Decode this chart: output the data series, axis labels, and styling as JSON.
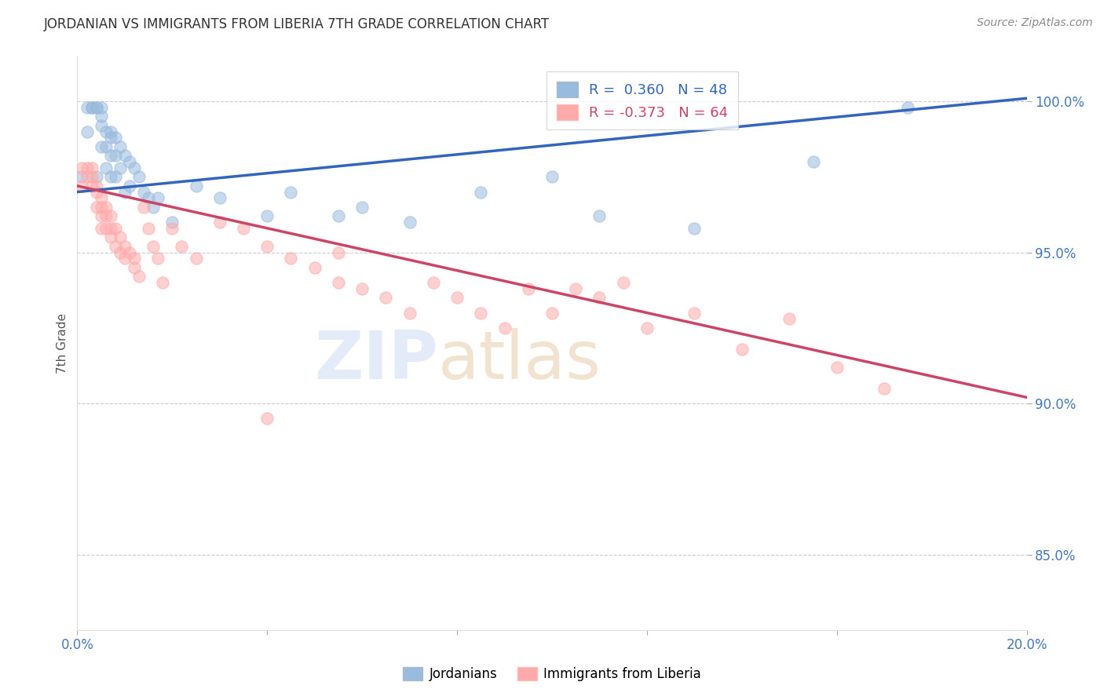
{
  "title": "JORDANIAN VS IMMIGRANTS FROM LIBERIA 7TH GRADE CORRELATION CHART",
  "source": "Source: ZipAtlas.com",
  "ylabel": "7th Grade",
  "xlim": [
    0.0,
    0.2
  ],
  "ylim": [
    0.825,
    1.015
  ],
  "y_ticks": [
    0.85,
    0.9,
    0.95,
    1.0
  ],
  "y_tick_labels": [
    "85.0%",
    "90.0%",
    "95.0%",
    "100.0%"
  ],
  "blue_color": "#99BBDD",
  "pink_color": "#FFAAAA",
  "blue_line_color": "#3366BB",
  "pink_line_color": "#CC4466",
  "legend_blue_label": "R =  0.360   N = 48",
  "legend_pink_label": "R = -0.373   N = 64",
  "watermark1": "ZIP",
  "watermark2": "atlas",
  "legend_label_jordanians": "Jordanians",
  "legend_label_liberia": "Immigrants from Liberia",
  "blue_line_y0": 0.97,
  "blue_line_y1": 1.001,
  "pink_line_y0": 0.972,
  "pink_line_y1": 0.902,
  "blue_x": [
    0.001,
    0.002,
    0.002,
    0.003,
    0.003,
    0.004,
    0.004,
    0.004,
    0.005,
    0.005,
    0.005,
    0.005,
    0.006,
    0.006,
    0.006,
    0.007,
    0.007,
    0.007,
    0.007,
    0.008,
    0.008,
    0.008,
    0.009,
    0.009,
    0.01,
    0.01,
    0.011,
    0.011,
    0.012,
    0.013,
    0.014,
    0.015,
    0.016,
    0.017,
    0.02,
    0.025,
    0.03,
    0.04,
    0.045,
    0.055,
    0.06,
    0.07,
    0.085,
    0.1,
    0.11,
    0.13,
    0.155,
    0.175
  ],
  "blue_y": [
    0.975,
    0.998,
    0.99,
    0.998,
    0.998,
    0.998,
    0.998,
    0.975,
    0.998,
    0.995,
    0.992,
    0.985,
    0.99,
    0.985,
    0.978,
    0.99,
    0.988,
    0.982,
    0.975,
    0.988,
    0.982,
    0.975,
    0.985,
    0.978,
    0.982,
    0.97,
    0.98,
    0.972,
    0.978,
    0.975,
    0.97,
    0.968,
    0.965,
    0.968,
    0.96,
    0.972,
    0.968,
    0.962,
    0.97,
    0.962,
    0.965,
    0.96,
    0.97,
    0.975,
    0.962,
    0.958,
    0.98,
    0.998
  ],
  "pink_x": [
    0.001,
    0.001,
    0.002,
    0.002,
    0.003,
    0.003,
    0.003,
    0.004,
    0.004,
    0.004,
    0.005,
    0.005,
    0.005,
    0.005,
    0.006,
    0.006,
    0.006,
    0.007,
    0.007,
    0.007,
    0.008,
    0.008,
    0.009,
    0.009,
    0.01,
    0.01,
    0.011,
    0.012,
    0.012,
    0.013,
    0.014,
    0.015,
    0.016,
    0.017,
    0.018,
    0.02,
    0.022,
    0.025,
    0.03,
    0.035,
    0.04,
    0.045,
    0.05,
    0.055,
    0.06,
    0.065,
    0.07,
    0.075,
    0.08,
    0.085,
    0.09,
    0.095,
    0.1,
    0.11,
    0.12,
    0.13,
    0.14,
    0.15,
    0.16,
    0.17,
    0.04,
    0.055,
    0.115,
    0.105
  ],
  "pink_y": [
    0.978,
    0.972,
    0.978,
    0.975,
    0.972,
    0.975,
    0.978,
    0.97,
    0.972,
    0.965,
    0.968,
    0.965,
    0.962,
    0.958,
    0.965,
    0.962,
    0.958,
    0.962,
    0.958,
    0.955,
    0.958,
    0.952,
    0.955,
    0.95,
    0.952,
    0.948,
    0.95,
    0.948,
    0.945,
    0.942,
    0.965,
    0.958,
    0.952,
    0.948,
    0.94,
    0.958,
    0.952,
    0.948,
    0.96,
    0.958,
    0.952,
    0.948,
    0.945,
    0.94,
    0.938,
    0.935,
    0.93,
    0.94,
    0.935,
    0.93,
    0.925,
    0.938,
    0.93,
    0.935,
    0.925,
    0.93,
    0.918,
    0.928,
    0.912,
    0.905,
    0.895,
    0.95,
    0.94,
    0.938
  ],
  "title_color": "#333333",
  "tick_label_color": "#4477BB",
  "grid_color": "#CCCCCC",
  "source_color": "#888888"
}
